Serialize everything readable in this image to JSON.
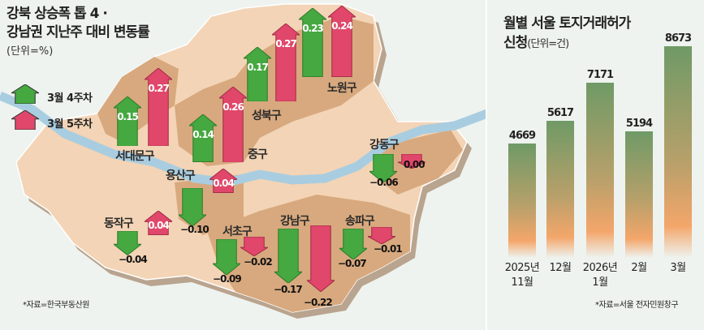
{
  "map": {
    "title_line1": "강북 상승폭 톱 4 ·",
    "title_line2": "강남권 지난주 대비 변동률",
    "unit": "(단위=%)",
    "legend": [
      {
        "label": "3월 4주차",
        "color": "#45a840"
      },
      {
        "label": "3월 5주차",
        "color": "#e0476a"
      }
    ],
    "source": "*자료=한국부동산원"
  },
  "chart_data": [
    {
      "type": "bar",
      "title": "강북 상승폭 톱 4 · 강남권 지난주 대비 변동률",
      "unit": "%",
      "categories": [
        "서대문구",
        "중구",
        "성북구",
        "노원구",
        "강동구",
        "용산구",
        "동작구",
        "서초구",
        "강남구",
        "송파구"
      ],
      "series": [
        {
          "name": "3월 4주차",
          "values": [
            0.15,
            0.14,
            0.17,
            0.23,
            -0.06,
            -0.1,
            -0.04,
            -0.09,
            -0.17,
            -0.07
          ],
          "labels": [
            "0.15",
            "0.14",
            "0.17",
            "0.23",
            "−0.06",
            "−0.10",
            "−0.04",
            "−0.09",
            "−0.17",
            "−0.07"
          ]
        },
        {
          "name": "3월 5주차",
          "values": [
            0.27,
            0.26,
            0.27,
            0.24,
            0.0,
            0.04,
            0.04,
            -0.02,
            -0.22,
            -0.01
          ],
          "labels": [
            "0.27",
            "0.26",
            "0.27",
            "0.24",
            "0.00",
            "0.04",
            "0.04",
            "−0.02",
            "−0.22",
            "−0.01"
          ]
        }
      ]
    },
    {
      "type": "bar",
      "title_line1": "월별 서울 토지거래허가",
      "title_line2": "신청",
      "unit_label": "(단위=건)",
      "categories": [
        [
          "2025년",
          "11월"
        ],
        [
          "12월",
          ""
        ],
        [
          "2026년",
          "1월"
        ],
        [
          "2월",
          ""
        ],
        [
          "3월",
          ""
        ]
      ],
      "values": [
        4669,
        5617,
        7171,
        5194,
        8673
      ],
      "value_labels": [
        "4669",
        "5617",
        "7171",
        "5194",
        "8673"
      ],
      "ylim": [
        0,
        9000
      ],
      "source": "*자료=서울 전자민원창구"
    }
  ]
}
